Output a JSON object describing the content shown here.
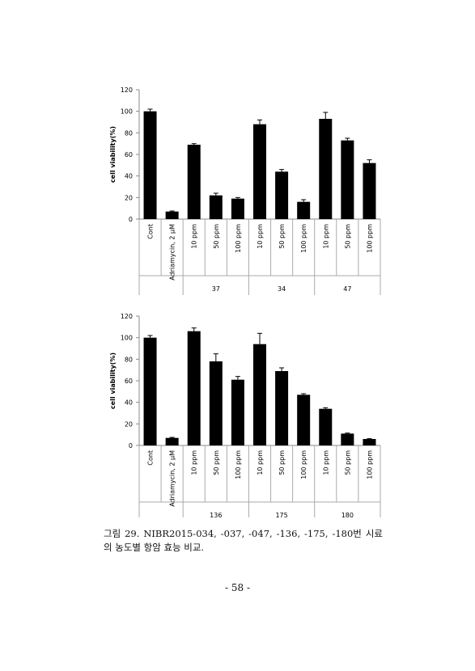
{
  "chart_data": [
    {
      "type": "bar",
      "y_label": "cell viability(%)",
      "categories": [
        "Cont",
        "Adriamycin, 2 μM",
        "10 ppm",
        "50 ppm",
        "100 ppm",
        "10 ppm",
        "50 ppm",
        "100 ppm",
        "10 ppm",
        "50 ppm",
        "100 ppm"
      ],
      "group_of": [
        null,
        null,
        "37",
        "37",
        "37",
        "34",
        "34",
        "34",
        "47",
        "47",
        "47"
      ],
      "values": [
        100,
        7,
        69,
        22,
        19,
        88,
        44,
        16,
        93,
        73,
        52
      ],
      "errors": [
        2,
        0.5,
        1,
        2,
        1,
        4,
        2,
        2,
        6,
        2,
        3
      ],
      "color": "#000000",
      "ylim": [
        0,
        120
      ],
      "yticks": [
        0,
        20,
        40,
        60,
        80,
        100,
        120
      ]
    },
    {
      "type": "bar",
      "y_label": "cell viability(%)",
      "categories": [
        "Cont",
        "Adriamycin, 2 μM",
        "10 ppm",
        "50 ppm",
        "100 ppm",
        "10 ppm",
        "50 ppm",
        "100 ppm",
        "10 ppm",
        "50 ppm",
        "100 ppm"
      ],
      "group_of": [
        null,
        null,
        "136",
        "136",
        "136",
        "175",
        "175",
        "175",
        "180",
        "180",
        "180"
      ],
      "values": [
        100,
        7,
        106,
        78,
        61,
        94,
        69,
        47,
        34,
        11,
        6
      ],
      "errors": [
        2,
        0.5,
        3,
        7,
        3,
        10,
        3,
        1,
        1,
        0.5,
        0.3
      ],
      "color": "#000000",
      "ylim": [
        0,
        120
      ],
      "yticks": [
        0,
        20,
        40,
        60,
        80,
        100,
        120
      ]
    }
  ],
  "caption": "그림 29. NIBR2015-034, -037, -047, -136, -175, -180번 시료의 농도별 항암 효능 비교.",
  "page_number": "- 58 -"
}
